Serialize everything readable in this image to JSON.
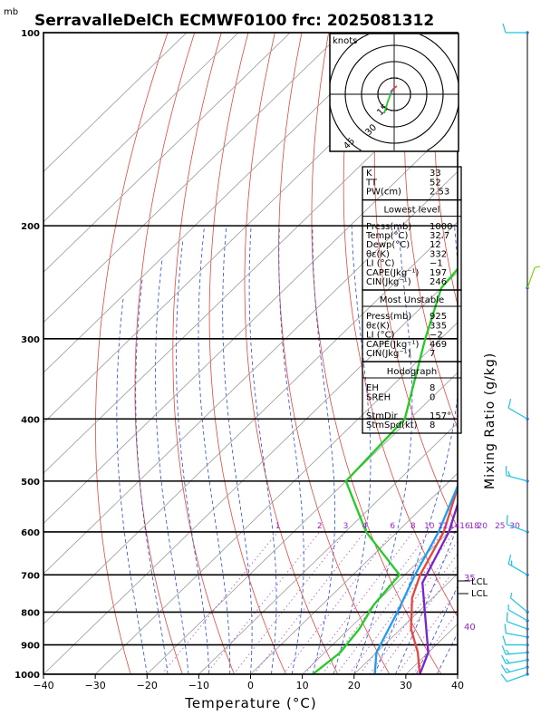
{
  "header": {
    "unit_label": "mb",
    "title": "SerravalleDelCh ECMWF0100 frc: 2025081312"
  },
  "chart_data": {
    "type": "line",
    "xlabel": "Temperature (°C)",
    "xlim": [
      -40,
      40
    ],
    "x_ticks": [
      -40,
      -30,
      -20,
      -10,
      0,
      10,
      20,
      30,
      40
    ],
    "ylim": [
      1000,
      100
    ],
    "y_ticks": [
      100,
      200,
      300,
      400,
      500,
      600,
      700,
      800,
      900,
      1000
    ],
    "series": [
      {
        "role": "temperature",
        "color": "#e8453c",
        "points": [
          [
            32.7,
            1000
          ],
          [
            28,
            925
          ],
          [
            22,
            850
          ],
          [
            16,
            760
          ],
          [
            13,
            700
          ],
          [
            9,
            600
          ],
          [
            2,
            500
          ],
          [
            -6,
            400
          ],
          [
            -14,
            300
          ],
          [
            -18,
            250
          ],
          [
            -20,
            200
          ],
          [
            -22,
            150
          ],
          [
            -24,
            100
          ]
        ]
      },
      {
        "role": "dewpoint",
        "color": "#22cc22",
        "points": [
          [
            12,
            1000
          ],
          [
            13,
            925
          ],
          [
            12,
            850
          ],
          [
            10,
            780
          ],
          [
            9,
            700
          ],
          [
            -6,
            600
          ],
          [
            -20,
            500
          ],
          [
            -21,
            400
          ],
          [
            -33,
            300
          ],
          [
            -40,
            250
          ],
          [
            -42,
            200
          ],
          [
            -42,
            150
          ],
          [
            -42,
            100
          ]
        ]
      },
      {
        "role": "parcel",
        "color": "#7a22cc",
        "points": [
          [
            32.7,
            1000
          ],
          [
            30,
            925
          ],
          [
            15,
            720
          ],
          [
            10,
            600
          ],
          [
            3,
            500
          ],
          [
            -6,
            400
          ],
          [
            -18,
            300
          ],
          [
            -30,
            200
          ],
          [
            -38,
            150
          ],
          [
            -46,
            100
          ]
        ]
      },
      {
        "role": "wetbulb",
        "color": "#1e9cf0",
        "points": [
          [
            24,
            1000
          ],
          [
            20,
            925
          ],
          [
            16,
            800
          ],
          [
            12,
            700
          ],
          [
            8,
            600
          ],
          [
            2,
            500
          ],
          [
            -8,
            400
          ],
          [
            -20,
            300
          ],
          [
            -35,
            200
          ],
          [
            -44,
            150
          ],
          [
            -52,
            100
          ]
        ]
      }
    ],
    "mixing_ratio_label": "Mixing Ratio (g/kg)",
    "mixing_ratio_values": [
      "1",
      "2",
      "3",
      "4",
      "6",
      "8",
      "10",
      "12",
      "14",
      "16",
      "18",
      "20",
      "25",
      "30"
    ],
    "annotations": {
      "theta_35": "35",
      "theta_40": "40",
      "lcl": "LCL",
      "lcl_right": "LCL"
    },
    "hodograph": {
      "unit": "knots",
      "rings": [
        "15",
        "30",
        "45"
      ]
    },
    "indices": [
      {
        "title": "",
        "rows": [
          [
            "K",
            "33"
          ],
          [
            "TT",
            "52"
          ],
          [
            "PW(cm)",
            "2.53"
          ]
        ]
      },
      {
        "title": "Lowest level",
        "rows": [
          [
            "Press(mb)",
            "1000"
          ],
          [
            "Temp(°C)",
            "32.7"
          ],
          [
            "Dewp(°C)",
            "12"
          ],
          [
            "θε(K)",
            "332"
          ],
          [
            "LI (°C)",
            "−1"
          ],
          [
            "CAPE(Jkg⁻¹)",
            "197"
          ],
          [
            "CIN(Jkg⁻¹)",
            "246"
          ]
        ]
      },
      {
        "title": "Most Unstable",
        "rows": [
          [
            "Press(mb)",
            "925"
          ],
          [
            "θε(K)",
            "335"
          ],
          [
            "LI (°C)",
            "−2"
          ],
          [
            "CAPE(Jkg⁻¹)",
            "469"
          ],
          [
            "CIN(Jkg⁻¹)",
            "7"
          ]
        ]
      },
      {
        "title": "Hodograph",
        "rows": [
          [
            "EH",
            "8"
          ],
          [
            "SREH",
            "0"
          ],
          [
            "",
            ""
          ],
          [
            "StmDir",
            "157°"
          ],
          [
            "StmSpd(kt)",
            "8"
          ]
        ]
      }
    ],
    "wind_profile": [
      {
        "p": 1000,
        "dir": 250,
        "spd": 10
      },
      {
        "p": 975,
        "dir": 255,
        "spd": 15
      },
      {
        "p": 950,
        "dir": 260,
        "spd": 15
      },
      {
        "p": 925,
        "dir": 265,
        "spd": 15
      },
      {
        "p": 900,
        "dir": 270,
        "spd": 10
      },
      {
        "p": 875,
        "dir": 280,
        "spd": 10
      },
      {
        "p": 850,
        "dir": 290,
        "spd": 10
      },
      {
        "p": 825,
        "dir": 300,
        "spd": 5
      },
      {
        "p": 800,
        "dir": 310,
        "spd": 5
      },
      {
        "p": 700,
        "dir": 300,
        "spd": 15
      },
      {
        "p": 600,
        "dir": 290,
        "spd": 10
      },
      {
        "p": 500,
        "dir": 285,
        "spd": 15
      },
      {
        "p": 400,
        "dir": 300,
        "spd": 10
      },
      {
        "p": 250,
        "dir": 20,
        "spd": 5
      },
      {
        "p": 100,
        "dir": 270,
        "spd": 10
      }
    ]
  }
}
